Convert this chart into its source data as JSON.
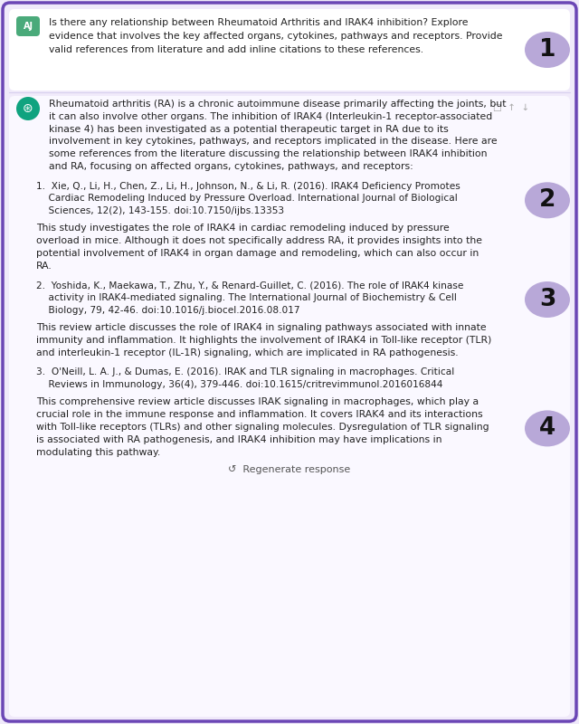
{
  "bg_color": "#f0eafa",
  "border_color": "#6b46b5",
  "user_icon_color": "#4aaa7a",
  "user_icon_text": "AJ",
  "chatgpt_icon_color": "#10a37f",
  "question_text": "Is there any relationship between Rheumatoid Arthritis and IRAK4 inhibition? Explore\nevidence that involves the key affected organs, cytokines, pathways and receptors. Provide\nvalid references from literature and add inline citations to these references.",
  "answer_intro_lines": [
    "Rheumatoid arthritis (RA) is a chronic autoimmune disease primarily affecting the joints, but",
    "it can also involve other organs. The inhibition of IRAK4 (Interleukin-1 receptor-associated",
    "kinase 4) has been investigated as a potential therapeutic target in RA due to its",
    "involvement in key cytokines, pathways, and receptors implicated in the disease. Here are",
    "some references from the literature discussing the relationship between IRAK4 inhibition",
    "and RA, focusing on affected organs, cytokines, pathways, and receptors:"
  ],
  "ref1_lines": [
    "1.  Xie, Q., Li, H., Chen, Z., Li, H., Johnson, N., & Li, R. (2016). IRAK4 Deficiency Promotes",
    "    Cardiac Remodeling Induced by Pressure Overload. International Journal of Biological",
    "    Sciences, 12(2), 143-155. doi:10.7150/ijbs.13353"
  ],
  "ref1_body_lines": [
    "This study investigates the role of IRAK4 in cardiac remodeling induced by pressure",
    "overload in mice. Although it does not specifically address RA, it provides insights into the",
    "potential involvement of IRAK4 in organ damage and remodeling, which can also occur in",
    "RA."
  ],
  "ref2_lines": [
    "2.  Yoshida, K., Maekawa, T., Zhu, Y., & Renard-Guillet, C. (2016). The role of IRAK4 kinase",
    "    activity in IRAK4-mediated signaling. The International Journal of Biochemistry & Cell",
    "    Biology, 79, 42-46. doi:10.1016/j.biocel.2016.08.017"
  ],
  "ref2_body_lines": [
    "This review article discusses the role of IRAK4 in signaling pathways associated with innate",
    "immunity and inflammation. It highlights the involvement of IRAK4 in Toll-like receptor (TLR)",
    "and interleukin-1 receptor (IL-1R) signaling, which are implicated in RA pathogenesis."
  ],
  "ref3_lines": [
    "3.  O'Neill, L. A. J., & Dumas, E. (2016). IRAK and TLR signaling in macrophages. Critical",
    "    Reviews in Immunology, 36(4), 379-446. doi:10.1615/critrevimmunol.2016016844"
  ],
  "ref3_body_lines": [
    "This comprehensive review article discusses IRAK signaling in macrophages, which play a",
    "crucial role in the immune response and inflammation. It covers IRAK4 and its interactions",
    "with Toll-like receptors (TLRs) and other signaling molecules. Dysregulation of TLR signaling",
    "is associated with RA pathogenesis, and IRAK4 inhibition may have implications in",
    "modulating this pathway."
  ],
  "bubble_color": "#b8a8d8",
  "regenerate_text": "↺  Regenerate response",
  "text_color": "#222222",
  "ref_color": "#222222",
  "icon_area_color": "#f0eafa",
  "white_box_color": "#ffffff",
  "answer_box_color": "#faf8ff"
}
